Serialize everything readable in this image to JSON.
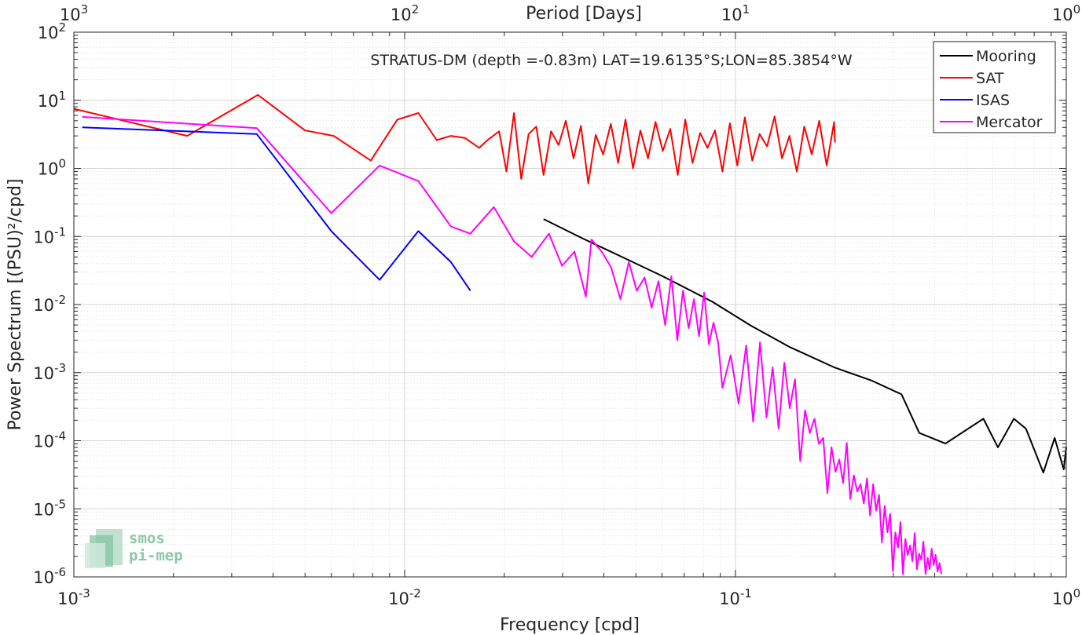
{
  "chart_data": {
    "type": "line",
    "title": "STRATUS-DM (depth =-0.83m) LAT=19.6135°S;LON=85.3854°W",
    "xlabel": "Frequency [cpd]",
    "ylabel": "Power Spectrum [(PSU)²/cpd]",
    "top_xlabel": "Period [Days]",
    "xscale": "log",
    "yscale": "log",
    "xlim": [
      0.001,
      1
    ],
    "ylim": [
      1e-06,
      100
    ],
    "grid": true,
    "legend_position": "top-right",
    "xticks": [
      {
        "value": 0.001,
        "base": "10",
        "exp": "-3"
      },
      {
        "value": 0.01,
        "base": "10",
        "exp": "-2"
      },
      {
        "value": 0.1,
        "base": "10",
        "exp": "-1"
      },
      {
        "value": 1,
        "base": "10",
        "exp": "0"
      }
    ],
    "top_xticks": [
      {
        "value": 0.001,
        "base": "10",
        "exp": "3"
      },
      {
        "value": 0.01,
        "base": "10",
        "exp": "2"
      },
      {
        "value": 0.1,
        "base": "10",
        "exp": "1"
      },
      {
        "value": 1,
        "base": "10",
        "exp": "0"
      }
    ],
    "yticks": [
      {
        "value": 1e-06,
        "base": "10",
        "exp": "-6"
      },
      {
        "value": 1e-05,
        "base": "10",
        "exp": "-5"
      },
      {
        "value": 0.0001,
        "base": "10",
        "exp": "-4"
      },
      {
        "value": 0.001,
        "base": "10",
        "exp": "-3"
      },
      {
        "value": 0.01,
        "base": "10",
        "exp": "-2"
      },
      {
        "value": 0.1,
        "base": "10",
        "exp": "-1"
      },
      {
        "value": 1,
        "base": "10",
        "exp": "0"
      },
      {
        "value": 10,
        "base": "10",
        "exp": "1"
      },
      {
        "value": 100,
        "base": "10",
        "exp": "2"
      }
    ],
    "logo": {
      "line1": "smos",
      "line2": "pi-mep"
    },
    "series": [
      {
        "name": "Mooring",
        "color": "#000000",
        "x": [
          0.0263,
          0.0346,
          0.0458,
          0.0603,
          0.0851,
          0.1113,
          0.1453,
          0.1986,
          0.2589,
          0.3177,
          0.3594,
          0.4311,
          0.5615,
          0.6212,
          0.6944,
          0.7553,
          0.8524,
          0.9224,
          0.9823,
          1.0
        ],
        "y": [
          0.18,
          0.093,
          0.049,
          0.026,
          0.011,
          0.0049,
          0.0024,
          0.0012,
          0.00076,
          0.00048,
          0.00013,
          9.1e-05,
          0.00021,
          8e-05,
          0.00021,
          0.00015,
          3.4e-05,
          0.00011,
          3.8e-05,
          8e-05
        ]
      },
      {
        "name": "SAT",
        "color": "#ff0000",
        "x": [
          0.001,
          0.0022,
          0.0036,
          0.005,
          0.0061,
          0.0079,
          0.0095,
          0.011,
          0.0125,
          0.0138,
          0.0152,
          0.0168,
          0.0178,
          0.0193,
          0.0203,
          0.0214,
          0.0225,
          0.0237,
          0.025,
          0.0263,
          0.0277,
          0.0292,
          0.0307,
          0.0324,
          0.0341,
          0.0359,
          0.0378,
          0.0398,
          0.042,
          0.0442,
          0.0465,
          0.049,
          0.0516,
          0.0544,
          0.0573,
          0.0603,
          0.0635,
          0.0669,
          0.0705,
          0.0742,
          0.0782,
          0.0823,
          0.0867,
          0.0913,
          0.0962,
          0.1013,
          0.1067,
          0.1124,
          0.1183,
          0.1246,
          0.1313,
          0.1382,
          0.1456,
          0.1533,
          0.1615,
          0.1701,
          0.1791,
          0.1887,
          0.1987,
          0.2
        ],
        "y": [
          7.5,
          3.0,
          12.0,
          3.6,
          3.0,
          1.3,
          5.2,
          6.5,
          2.6,
          3.0,
          2.8,
          2.0,
          2.6,
          3.5,
          0.9,
          6.5,
          0.7,
          3.2,
          4.1,
          0.8,
          3.5,
          2.2,
          5.0,
          1.4,
          4.2,
          0.6,
          3.1,
          1.6,
          4.5,
          1.2,
          5.2,
          1.0,
          3.6,
          1.4,
          4.8,
          1.8,
          3.8,
          0.8,
          5.2,
          1.2,
          3.3,
          2.0,
          3.6,
          0.9,
          4.6,
          1.1,
          5.6,
          1.3,
          3.2,
          2.1,
          5.8,
          1.4,
          3.0,
          0.9,
          4.1,
          1.6,
          5.0,
          1.1,
          4.8,
          2.4
        ]
      },
      {
        "name": "ISAS",
        "color": "#0000ff",
        "x": [
          0.00106,
          0.00357,
          0.006,
          0.0084,
          0.011,
          0.0138,
          0.0158
        ],
        "y": [
          4.0,
          3.2,
          0.12,
          0.023,
          0.12,
          0.042,
          0.016
        ]
      },
      {
        "name": "Mercator",
        "color": "#ff00ff",
        "x": [
          0.00106,
          0.00357,
          0.006,
          0.0084,
          0.011,
          0.0138,
          0.0158,
          0.0186,
          0.0214,
          0.0242,
          0.0273,
          0.0299,
          0.0326,
          0.0353,
          0.0367,
          0.0394,
          0.0421,
          0.0449,
          0.0476,
          0.0503,
          0.0531,
          0.0558,
          0.0585,
          0.0613,
          0.064,
          0.0667,
          0.0694,
          0.0722,
          0.0749,
          0.0776,
          0.0804,
          0.0831,
          0.0858,
          0.0886,
          0.0913,
          0.0967,
          0.1022,
          0.1077,
          0.1131,
          0.1186,
          0.1241,
          0.1295,
          0.135,
          0.1405,
          0.1459,
          0.1514,
          0.1569,
          0.1623,
          0.1678,
          0.1733,
          0.1787,
          0.1842,
          0.1896,
          0.1951,
          0.2006,
          0.206,
          0.2115,
          0.217,
          0.2224,
          0.2279,
          0.2334,
          0.2388,
          0.2443,
          0.2498,
          0.2552,
          0.2607,
          0.2662,
          0.2716,
          0.2771,
          0.2826,
          0.288,
          0.2935,
          0.299,
          0.3044,
          0.3099,
          0.3154,
          0.3208,
          0.3263,
          0.3318,
          0.3372,
          0.3427,
          0.3482,
          0.3536,
          0.3591,
          0.3646,
          0.37,
          0.3755,
          0.381,
          0.3864,
          0.3919,
          0.3974,
          0.4028,
          0.4083,
          0.4138,
          0.4192
        ],
        "y": [
          5.7,
          3.9,
          0.22,
          1.1,
          0.65,
          0.14,
          0.11,
          0.27,
          0.085,
          0.05,
          0.11,
          0.037,
          0.06,
          0.013,
          0.09,
          0.06,
          0.035,
          0.012,
          0.042,
          0.016,
          0.025,
          0.009,
          0.022,
          0.005,
          0.026,
          0.003,
          0.016,
          0.0045,
          0.012,
          0.0034,
          0.015,
          0.0026,
          0.0054,
          0.0028,
          0.0006,
          0.0018,
          0.00035,
          0.0025,
          0.00019,
          0.0028,
          0.00022,
          0.0012,
          0.00015,
          0.0014,
          0.0003,
          0.0008,
          5e-05,
          0.00028,
          0.00013,
          0.00021,
          9e-05,
          0.00011,
          1.7e-05,
          8e-05,
          3.5e-05,
          5.3e-05,
          2.4e-05,
          9.3e-05,
          1.4e-05,
          3.1e-05,
          1.8e-05,
          2.3e-05,
          1.2e-05,
          2.8e-05,
          8e-06,
          2.3e-05,
          9.5e-06,
          1.6e-05,
          3.2e-06,
          1.1e-05,
          4.5e-06,
          8.4e-06,
          1.2e-06,
          4.5e-06,
          2.7e-06,
          6.4e-06,
          1.1e-06,
          3.6e-06,
          2.1e-06,
          2.9e-06,
          1.7e-06,
          4.4e-06,
          1.3e-06,
          2.2e-06,
          1.8e-06,
          3.3e-06,
          1.1e-06,
          1.9e-06,
          1.3e-06,
          2.6e-06,
          1.5e-06,
          2.1e-06,
          1.2e-06,
          1.6e-06,
          1.1e-06
        ]
      }
    ]
  }
}
